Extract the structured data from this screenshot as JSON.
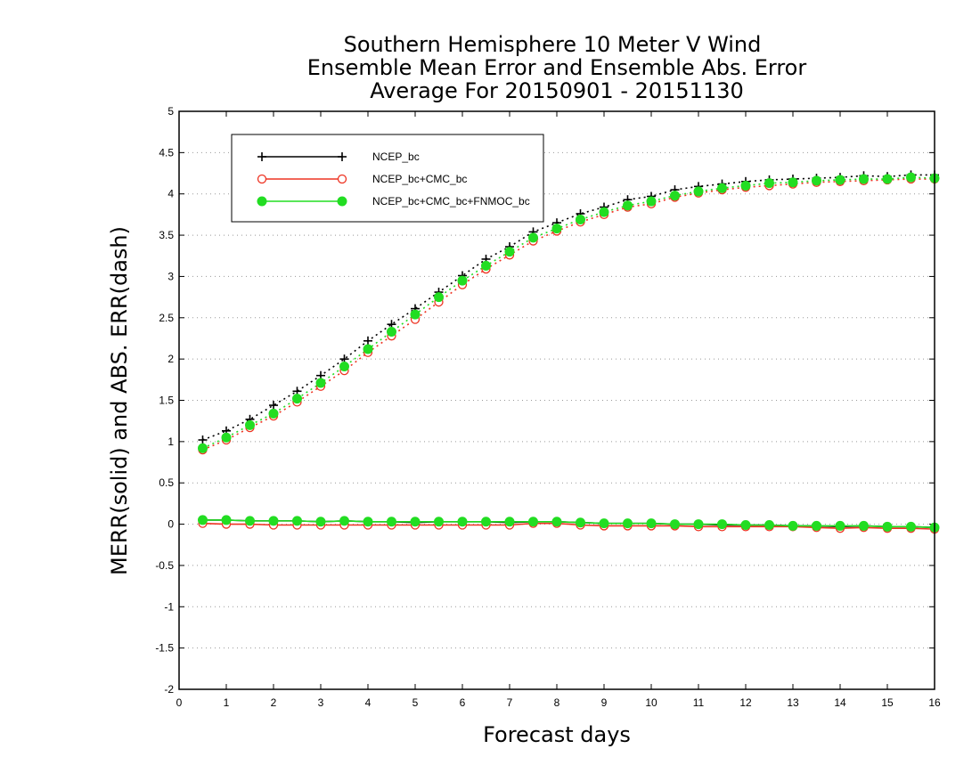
{
  "chart_data": {
    "type": "line",
    "title": [
      "Southern Hemisphere 10 Meter V Wind",
      "Ensemble Mean Error and Ensemble Abs. Error",
      "Average For 20150901 - 20151130"
    ],
    "xlabel": "Forecast days",
    "ylabel": "MERR(solid) and ABS. ERR(dash)",
    "xlim": [
      0,
      16
    ],
    "ylim": [
      -2,
      5
    ],
    "xticks": [
      0,
      1,
      2,
      3,
      4,
      5,
      6,
      7,
      8,
      9,
      10,
      11,
      12,
      13,
      14,
      15,
      16
    ],
    "yticks": [
      -2,
      -1.5,
      -1,
      -0.5,
      0,
      0.5,
      1,
      1.5,
      2,
      2.5,
      3,
      3.5,
      4,
      4.5,
      5
    ],
    "grid": "horizontal dotted",
    "legend_position": "top-left",
    "x": [
      0.5,
      1,
      1.5,
      2,
      2.5,
      3,
      3.5,
      4,
      4.5,
      5,
      5.5,
      6,
      6.5,
      7,
      7.5,
      8,
      8.5,
      9,
      9.5,
      10,
      10.5,
      11,
      11.5,
      12,
      12.5,
      13,
      13.5,
      14,
      14.5,
      15,
      15.5,
      16
    ],
    "series": [
      {
        "name": "NCEP_bc",
        "color": "#000000",
        "marker": "plus",
        "abs_err": [
          1.02,
          1.13,
          1.27,
          1.44,
          1.61,
          1.8,
          2.0,
          2.22,
          2.42,
          2.61,
          2.81,
          3.01,
          3.21,
          3.36,
          3.54,
          3.65,
          3.76,
          3.84,
          3.93,
          3.97,
          4.05,
          4.09,
          4.12,
          4.15,
          4.17,
          4.18,
          4.19,
          4.2,
          4.22,
          4.21,
          4.23,
          4.23
        ],
        "mean_err": [
          0.05,
          0.05,
          0.04,
          0.04,
          0.04,
          0.03,
          0.04,
          0.03,
          0.03,
          0.02,
          0.03,
          0.03,
          0.03,
          0.02,
          0.03,
          0.03,
          0.02,
          0.01,
          0.01,
          0.01,
          0.0,
          0.0,
          -0.01,
          -0.01,
          -0.01,
          -0.02,
          -0.02,
          -0.03,
          -0.02,
          -0.03,
          -0.03,
          -0.04
        ]
      },
      {
        "name": "NCEP_bc+CMC_bc",
        "color": "#ee3322",
        "marker": "open-circle",
        "abs_err": [
          0.9,
          1.02,
          1.17,
          1.31,
          1.48,
          1.67,
          1.86,
          2.08,
          2.28,
          2.48,
          2.69,
          2.9,
          3.09,
          3.26,
          3.43,
          3.55,
          3.66,
          3.75,
          3.84,
          3.88,
          3.96,
          4.01,
          4.05,
          4.08,
          4.1,
          4.12,
          4.14,
          4.15,
          4.16,
          4.17,
          4.18,
          4.18
        ],
        "mean_err": [
          0.01,
          0.0,
          0.0,
          -0.01,
          -0.01,
          -0.01,
          -0.01,
          -0.01,
          -0.01,
          -0.01,
          -0.01,
          -0.01,
          -0.01,
          -0.01,
          0.01,
          0.01,
          -0.01,
          -0.02,
          -0.02,
          -0.02,
          -0.02,
          -0.03,
          -0.03,
          -0.03,
          -0.03,
          -0.03,
          -0.04,
          -0.05,
          -0.04,
          -0.05,
          -0.05,
          -0.06
        ]
      },
      {
        "name": "NCEP_bc+CMC_bc+FNMOC_bc",
        "color": "#22dd22",
        "marker": "filled-circle",
        "abs_err": [
          0.92,
          1.05,
          1.2,
          1.34,
          1.52,
          1.71,
          1.91,
          2.12,
          2.33,
          2.54,
          2.75,
          2.95,
          3.13,
          3.3,
          3.47,
          3.58,
          3.69,
          3.78,
          3.86,
          3.91,
          3.98,
          4.03,
          4.07,
          4.1,
          4.13,
          4.14,
          4.16,
          4.17,
          4.18,
          4.18,
          4.2,
          4.19
        ],
        "mean_err": [
          0.05,
          0.05,
          0.04,
          0.04,
          0.04,
          0.03,
          0.04,
          0.03,
          0.03,
          0.03,
          0.03,
          0.03,
          0.03,
          0.03,
          0.03,
          0.03,
          0.02,
          0.01,
          0.01,
          0.01,
          0.0,
          0.0,
          0.0,
          -0.01,
          -0.01,
          -0.02,
          -0.02,
          -0.02,
          -0.02,
          -0.03,
          -0.03,
          -0.04
        ]
      }
    ]
  }
}
